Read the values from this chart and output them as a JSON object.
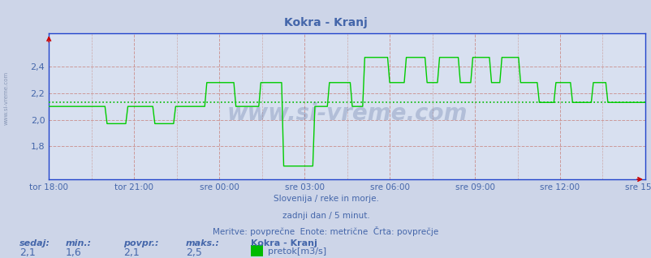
{
  "title": "Kokra - Kranj",
  "bg_color": "#cdd5e8",
  "plot_bg_color": "#d8e0f0",
  "line_color": "#00cc00",
  "avg_line_color": "#00bb00",
  "avg_value": 2.13,
  "ylim": [
    1.55,
    2.65
  ],
  "yticks": [
    1.8,
    2.0,
    2.2,
    2.4
  ],
  "ylabel_vals": [
    "1,8",
    "2,0",
    "2,2",
    "2,4"
  ],
  "xlabel_vals": [
    "tor 18:00",
    "tor 21:00",
    "sre 00:00",
    "sre 03:00",
    "sre 06:00",
    "sre 09:00",
    "sre 12:00",
    "sre 15:00"
  ],
  "text_color": "#4466aa",
  "subtitle1": "Slovenija / reke in morje.",
  "subtitle2": "zadnji dan / 5 minut.",
  "subtitle3": "Meritve: povprečne  Enote: metrične  Črta: povprečje",
  "footer_labels": [
    "sedaj:",
    "min.:",
    "povpr.:",
    "maks.:",
    "Kokra - Kranj"
  ],
  "footer_values": [
    "2,1",
    "1,6",
    "2,1",
    "2,5"
  ],
  "legend_label": "pretok[m3/s]",
  "legend_color": "#00bb00",
  "watermark": "www.si-vreme.com",
  "n_points": 288,
  "grid_major_color": "#cc9999",
  "grid_minor_color": "#ccaaaa",
  "spine_color": "#2244cc",
  "arrow_color": "#cc0000"
}
